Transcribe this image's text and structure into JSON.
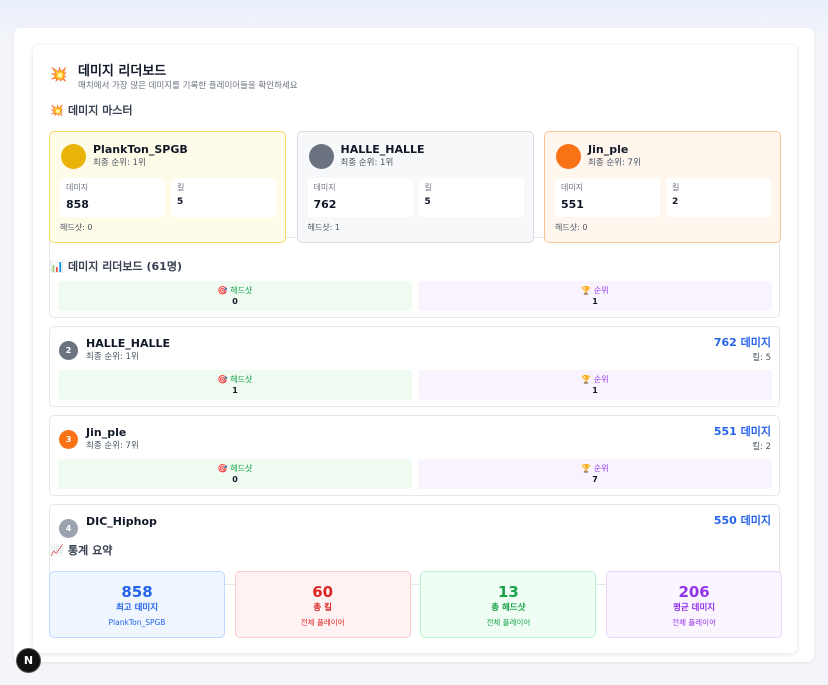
{
  "header": {
    "icon": "💥",
    "title": "데미지 리더보드",
    "subtitle": "매치에서 가장 많은 데미지를 기록한 플레이어들을 확인하세요"
  },
  "masters": {
    "icon": "💥",
    "title": "데미지 마스터",
    "cards": [
      {
        "name": "PlankTon_SPGB",
        "rank": "최종 순위: 1위",
        "damage_label": "데미지",
        "damage": 858,
        "kill_label": "킬",
        "kills": 5,
        "headshots": "헤드샷: 0"
      },
      {
        "name": "HALLE_HALLE",
        "rank": "최종 순위: 1위",
        "damage_label": "데미지",
        "damage": 762,
        "kill_label": "킬",
        "kills": 5,
        "headshots": "헤드샷: 1"
      },
      {
        "name": "Jin_ple",
        "rank": "최종 순위: 7위",
        "damage_label": "데미지",
        "damage": 551,
        "kill_label": "킬",
        "kills": 2,
        "headshots": "헤드샷: 0"
      }
    ]
  },
  "leaderboard": {
    "icon": "📊",
    "title": "데미지 리더보드 (61명)",
    "entries": [
      {
        "headshot_label": "🎯 헤드샷",
        "headshots": 0,
        "place_label": "🏆 순위",
        "place": 1
      },
      {
        "position": 2,
        "name": "HALLE_HALLE",
        "rank": "최종 순위: 1위",
        "damage": "762 데미지",
        "kills": "킬: 5",
        "headshot_label": "🎯 헤드샷",
        "headshots": 1,
        "place_label": "🏆 순위",
        "place": 1
      },
      {
        "position": 3,
        "name": "Jin_ple",
        "rank": "최종 순위: 7위",
        "damage": "551 데미지",
        "kills": "킬: 2",
        "headshot_label": "🎯 헤드샷",
        "headshots": 0,
        "place_label": "🏆 순위",
        "place": 7
      },
      {
        "position": 4,
        "name": "DIC_Hiphop",
        "damage": "550 데미지"
      }
    ]
  },
  "summary": {
    "icon": "📈",
    "title": "통계 요약",
    "stats": [
      {
        "value": 858,
        "label": "최고 데미지",
        "sub": "PlankTon_SPGB"
      },
      {
        "value": 60,
        "label": "총 킬",
        "sub": "전체 플레이어"
      },
      {
        "value": 13,
        "label": "총 헤드샷",
        "sub": "전체 플레이어"
      },
      {
        "value": 206,
        "label": "평균 데미지",
        "sub": "전체 플레이어"
      }
    ]
  },
  "badge": "N"
}
